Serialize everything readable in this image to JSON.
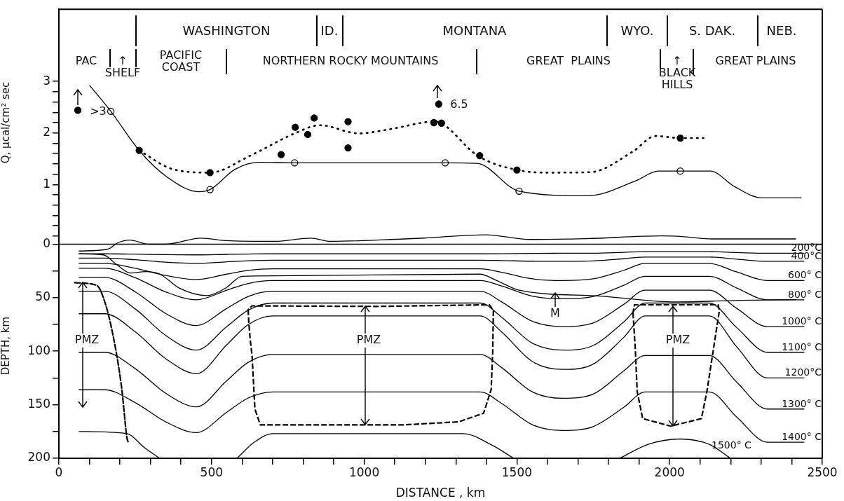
{
  "chart_data": [
    {
      "type": "line",
      "ylabel": "Q, μcal/cm² sec",
      "xlim": [
        0,
        2500
      ],
      "ylim": [
        0,
        4.4
      ],
      "tick_labels": "y",
      "yticks": [
        {
          "value": 0,
          "label": null
        },
        {
          "value": 0.2,
          "label": null
        },
        {
          "value": 0.4,
          "label": null
        },
        {
          "value": 0.6,
          "label": null
        },
        {
          "value": 0.8,
          "label": null
        },
        1,
        {
          "value": 1.2,
          "label": null
        },
        {
          "value": 1.4,
          "label": null
        },
        {
          "value": 1.6,
          "label": null
        },
        {
          "value": 1.8,
          "label": null
        },
        2,
        {
          "value": 2.2,
          "label": null
        },
        {
          "value": 2.4,
          "label": null
        },
        {
          "value": 2.6,
          "label": null
        },
        {
          "value": 2.8,
          "label": null
        },
        3
      ],
      "series": [
        {
          "color": "#000000",
          "x": [
            101,
            170,
            263,
            353,
            458,
            495,
            576,
            654,
            772,
            1265,
            1369,
            1507,
            1733,
            1889,
            1963,
            2035,
            2134,
            2212,
            2302,
            2431
          ],
          "values": [
            2.92,
            2.42,
            1.66,
            1.15,
            0.86,
            0.9,
            1.29,
            1.43,
            1.42,
            1.42,
            1.41,
            0.87,
            0.78,
            1.07,
            1.26,
            1.26,
            1.26,
            0.96,
            0.74,
            0.74
          ]
        },
        {
          "line_style": "dotted",
          "color": "#000000",
          "x": [
            263,
            371,
            495,
            627,
            772,
            855,
            982,
            1081,
            1233,
            1253,
            1371,
            1502,
            1604,
            1742,
            1880,
            1954,
            2035,
            2111
          ],
          "values": [
            1.66,
            1.3,
            1.23,
            1.56,
            1.99,
            2.15,
            1.99,
            2.07,
            2.22,
            2.19,
            1.56,
            1.28,
            1.23,
            1.24,
            1.64,
            1.94,
            1.9,
            1.9
          ]
        },
        {
          "type": "scatter",
          "color": "#000000",
          "x": [
            62,
            263,
            495,
            728,
            774,
            815,
            836,
            947,
            947,
            1228,
            1244,
            1253,
            1378,
            1500,
            2035
          ],
          "values": [
            2.44,
            1.66,
            1.23,
            1.58,
            2.11,
            1.97,
            2.29,
            2.22,
            1.71,
            2.2,
            2.56,
            2.19,
            1.56,
            1.28,
            1.9
          ]
        },
        {
          "type": "scatter",
          "color": "#ffffff",
          "x": [
            170,
            495,
            772,
            1265,
            1507,
            2035
          ],
          "values": [
            2.42,
            0.9,
            1.42,
            1.42,
            0.87,
            1.26
          ]
        }
      ],
      "annotations": [
        "WASHINGTON",
        "ID.",
        "MONTANA",
        "WYO.",
        "S. DAK.",
        "NEB.",
        "PAC",
        "↑\nSHELF",
        "PACIFIC\nCOAST",
        "NORTHERN ROCKY MOUNTAINS",
        "GREAT  PLAINS",
        "↑\nBLACK\nHILLS",
        "GREAT PLAINS",
        ">3",
        "6.5"
      ]
    },
    {
      "type": "line",
      "xlabel": "DISTANCE , km",
      "ylabel": "DEPTH, km",
      "xlim": [
        0,
        2500
      ],
      "ylim": [
        200,
        -10
      ],
      "xticks": [
        0,
        {
          "value": 100,
          "label": null
        },
        {
          "value": 200,
          "label": null
        },
        {
          "value": 300,
          "label": null
        },
        {
          "value": 400,
          "label": null
        },
        500,
        {
          "value": 600,
          "label": null
        },
        {
          "value": 700,
          "label": null
        },
        {
          "value": 800,
          "label": null
        },
        {
          "value": 900,
          "label": null
        },
        1000,
        {
          "value": 1100,
          "label": null
        },
        {
          "value": 1200,
          "label": null
        },
        {
          "value": 1300,
          "label": null
        },
        {
          "value": 1400,
          "label": null
        },
        1500,
        {
          "value": 1600,
          "label": null
        },
        {
          "value": 1700,
          "label": null
        },
        {
          "value": 1800,
          "label": null
        },
        {
          "value": 1900,
          "label": null
        },
        2000,
        {
          "value": 2100,
          "label": null
        },
        {
          "value": 2200,
          "label": null
        },
        {
          "value": 2300,
          "label": null
        },
        {
          "value": 2400,
          "label": null
        },
        2500
      ],
      "yticks": [
        0,
        {
          "value": 25,
          "label": null
        },
        50,
        {
          "value": 75,
          "label": null
        },
        100,
        {
          "value": 125,
          "label": null
        },
        150,
        {
          "value": 175,
          "label": null
        },
        200
      ],
      "x": [
        66,
        150,
        250,
        350,
        450,
        550,
        620,
        700,
        1000,
        1380,
        1450,
        1550,
        1650,
        1750,
        1850,
        1920,
        2050,
        2130,
        2220,
        2320,
        2440
      ],
      "series": [
        {
          "name": "200°C",
          "color": "#000000",
          "values": [
            9,
            9,
            9.3,
            9.8,
            10,
            9.5,
            9.2,
            9,
            9,
            9,
            8.9,
            8.6,
            8.5,
            8.4,
            7.6,
            7,
            7,
            7,
            7.8,
            8.5,
            8.5
          ]
        },
        {
          "name": "400°C",
          "color": "#000000",
          "values": [
            13,
            13,
            14.5,
            16.8,
            18,
            16.5,
            15.5,
            15,
            15,
            15,
            15.3,
            15.9,
            16,
            15.6,
            13.6,
            12,
            12,
            12,
            14,
            16,
            16
          ]
        },
        {
          "name": "600° C",
          "color": "#000000",
          "values": [
            18,
            18,
            22.5,
            29.3,
            33,
            28,
            24.5,
            23,
            23,
            23,
            26.3,
            32.4,
            34,
            32.4,
            24.4,
            18,
            18,
            18,
            26,
            34,
            34
          ]
        },
        {
          "name": "800° C",
          "color": "#000000",
          "values": [
            22.5,
            22.5,
            31.4,
            44.6,
            52,
            43,
            36.7,
            34,
            34,
            34,
            39.1,
            48.5,
            51,
            48.9,
            38.4,
            30,
            30,
            30,
            41,
            52,
            52
          ]
        },
        {
          "name": "1000° C",
          "color": "#000000",
          "values": [
            31,
            31,
            44.5,
            64.8,
            76,
            60,
            48.8,
            44,
            44,
            44,
            53.9,
            72,
            77,
            73.6,
            56.2,
            43,
            43,
            43,
            60,
            77,
            77
          ]
        },
        {
          "name": "1100° C",
          "color": "#000000",
          "values": [
            44,
            44,
            60.5,
            85.3,
            99,
            77,
            61.6,
            55,
            55,
            55,
            68.2,
            92.4,
            99,
            94.6,
            72.6,
            55,
            55,
            55,
            78,
            101,
            101
          ]
        },
        {
          "name": "1200°C",
          "color": "#000000",
          "values": [
            65,
            65,
            81.8,
            107,
            121,
            94,
            75.1,
            67,
            67,
            67,
            82,
            109.5,
            117,
            112,
            87,
            67,
            67,
            67,
            96,
            125,
            125
          ]
        },
        {
          "name": "1300° C",
          "color": "#000000",
          "values": [
            101,
            101,
            116.3,
            139.3,
            152,
            127.5,
            110.4,
            103,
            103,
            103,
            115.3,
            137.9,
            144,
            140,
            118.4,
            104,
            104,
            104,
            129,
            154,
            154
          ]
        },
        {
          "name": "1400° C",
          "color": "#000000",
          "values": [
            136,
            136,
            148,
            166,
            176,
            157,
            143.7,
            138,
            138,
            138,
            148.8,
            168.6,
            174,
            170.4,
            152.4,
            138,
            138,
            138,
            161.5,
            185,
            185
          ]
        },
        {
          "name": "1500° C",
          "color": "#000000",
          "x": [
            66,
            223,
            280,
            330,
            450,
            583,
            640,
            700,
            1000,
            1324,
            1420,
            1489,
            1650,
            1837,
            1930,
            2034,
            2130,
            2199
          ],
          "values": [
            175,
            177,
            190,
            200,
            null,
            200,
            185,
            177,
            177,
            177,
            188,
            200,
            null,
            200,
            187,
            182,
            187,
            200
          ]
        },
        {
          "color": "#000000",
          "x": [
            66,
            146,
            189,
            234,
            286,
            331,
            394,
            485,
            546,
            600,
            708,
            1379,
            1434,
            1507,
            1773,
            2020,
            2231,
            2414
          ],
          "values": [
            9,
            10,
            19,
            27,
            25.6,
            28,
            41,
            48,
            41,
            30,
            29.5,
            28,
            34,
            43,
            48.5,
            54,
            52.5,
            51.8
          ]
        },
        {
          "color": "#000000",
          "x": [
            66,
            160,
            193,
            232,
            295,
            349,
            466,
            546,
            708,
            825,
            888,
            1132,
            1196,
            1397,
            1544,
            1727,
            1974,
            2047,
            2138,
            2413
          ],
          "values": [
            6.4,
            4.6,
            -1.3,
            -3.8,
            0,
            0,
            -5.6,
            -3.3,
            -2.6,
            -5.6,
            -2.6,
            -4.9,
            -5.7,
            -8.8,
            -4.4,
            -5.2,
            -7.7,
            -7,
            -4.9,
            -4.9
          ]
        },
        {
          "color": "#000000",
          "line_style": "dashed",
          "x": [
            52,
            124,
            137,
            169,
            205,
            223,
            227
          ],
          "values": [
            36,
            38.5,
            43.6,
            74,
            133,
            181,
            185
          ]
        }
      ],
      "ref_lines": [
        {
          "axis": "y",
          "value": 0
        }
      ],
      "annotations": [
        "M",
        "PMZ",
        "PMZ",
        "PMZ"
      ]
    }
  ]
}
